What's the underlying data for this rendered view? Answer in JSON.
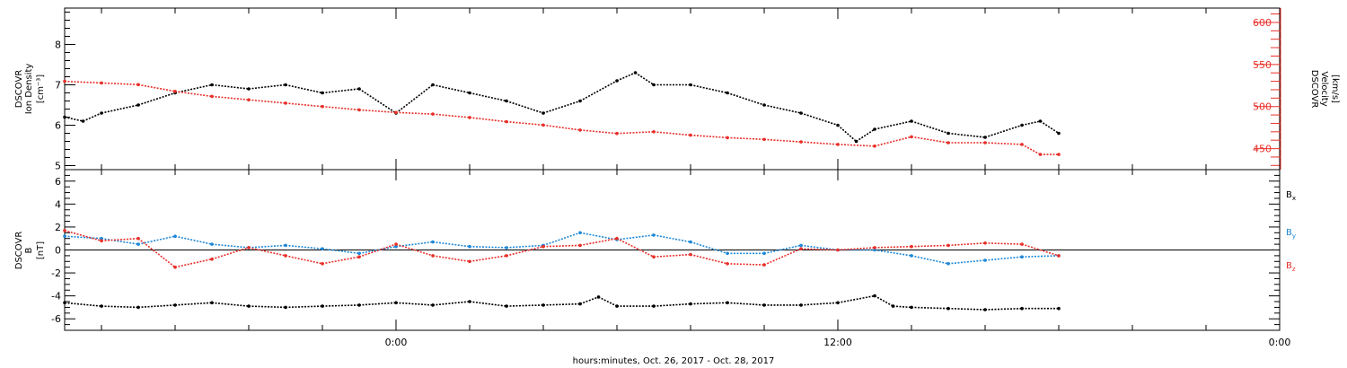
{
  "chart_data": [
    {
      "type": "scatter",
      "title": "",
      "y_label_lines": [
        "DSCOVR",
        "Ion Density"
      ],
      "y_unit": "[cm⁻³]",
      "y2_label_lines": [
        "DSCOVR",
        "Velocity"
      ],
      "y2_unit": "[km/s]",
      "y_ticks": [
        "5",
        "6",
        "7",
        "8"
      ],
      "y_tick_values": [
        5,
        6,
        7,
        8
      ],
      "y_lim": [
        4.9,
        8.9
      ],
      "y2_ticks": [
        "450",
        "500",
        "550",
        "600"
      ],
      "y2_tick_values": [
        450,
        500,
        550,
        600
      ],
      "y2_lim": [
        425,
        617
      ],
      "grid": false,
      "series": [
        {
          "axis": "left",
          "color": "#000000",
          "x_hours": [
            -9.0,
            -8.5,
            -8.0,
            -7.0,
            -6.0,
            -5.0,
            -4.0,
            -3.0,
            -2.0,
            -1.0,
            0.0,
            1.0,
            2.0,
            3.0,
            4.0,
            5.0,
            6.0,
            6.5,
            7.0,
            8.0,
            9.0,
            10.0,
            11.0,
            12.0,
            12.5,
            13.0,
            14.0,
            15.0,
            16.0,
            17.0,
            17.5,
            18.0
          ],
          "y": [
            6.2,
            6.1,
            6.3,
            6.5,
            6.8,
            7.0,
            6.9,
            7.0,
            6.8,
            6.9,
            6.3,
            7.0,
            6.8,
            6.6,
            6.3,
            6.6,
            7.1,
            7.3,
            7.0,
            7.0,
            6.8,
            6.5,
            6.3,
            6.0,
            5.6,
            5.9,
            6.1,
            5.8,
            5.7,
            6.0,
            6.1,
            5.8
          ]
        },
        {
          "axis": "right",
          "color": "#e8302a",
          "x_hours": [
            -9.0,
            -8.0,
            -7.0,
            -6.0,
            -5.0,
            -4.0,
            -3.0,
            -2.0,
            -1.0,
            0.0,
            1.0,
            2.0,
            3.0,
            4.0,
            5.0,
            6.0,
            7.0,
            8.0,
            9.0,
            10.0,
            11.0,
            12.0,
            13.0,
            14.0,
            15.0,
            16.0,
            17.0,
            17.5,
            18.0
          ],
          "y": [
            530,
            528,
            526,
            518,
            512,
            508,
            504,
            500,
            496,
            493,
            491,
            487,
            482,
            478,
            472,
            468,
            470,
            466,
            463,
            461,
            458,
            455,
            453,
            464,
            457,
            457,
            455,
            443,
            443
          ]
        }
      ]
    },
    {
      "type": "scatter",
      "title": "",
      "y_label_lines": [
        "DSCOVR",
        "B"
      ],
      "y_unit": "[nT]",
      "y_ticks": [
        "-6",
        "-4",
        "-2",
        "0",
        "2",
        "4",
        "6"
      ],
      "y_tick_values": [
        -6,
        -4,
        -2,
        0,
        2,
        4,
        6
      ],
      "y_lim": [
        -7,
        7
      ],
      "zero_line": true,
      "legend_position": "right",
      "grid": false,
      "series": [
        {
          "name": "Bx",
          "label_main": "B",
          "label_sub": "x",
          "color": "#000000",
          "x_hours": [
            -9.0,
            -8.0,
            -7.0,
            -6.0,
            -5.0,
            -4.0,
            -3.0,
            -2.0,
            -1.0,
            0.0,
            1.0,
            2.0,
            3.0,
            4.0,
            5.0,
            5.5,
            6.0,
            7.0,
            8.0,
            9.0,
            10.0,
            11.0,
            12.0,
            13.0,
            13.5,
            14.0,
            15.0,
            16.0,
            17.0,
            18.0
          ],
          "y": [
            -4.6,
            -4.9,
            -5.0,
            -4.8,
            -4.6,
            -4.9,
            -5.0,
            -4.9,
            -4.8,
            -4.6,
            -4.8,
            -4.5,
            -4.9,
            -4.8,
            -4.7,
            -4.1,
            -4.9,
            -4.9,
            -4.7,
            -4.6,
            -4.8,
            -4.8,
            -4.6,
            -4.0,
            -4.9,
            -5.0,
            -5.1,
            -5.2,
            -5.1,
            -5.1
          ]
        },
        {
          "name": "By",
          "label_main": "B",
          "label_sub": "y",
          "color": "#1e88d8",
          "x_hours": [
            -9.0,
            -8.0,
            -7.0,
            -6.0,
            -5.0,
            -4.0,
            -3.0,
            -2.0,
            -1.0,
            0.0,
            1.0,
            2.0,
            3.0,
            4.0,
            5.0,
            6.0,
            7.0,
            8.0,
            9.0,
            10.0,
            11.0,
            12.0,
            13.0,
            14.0,
            15.0,
            16.0,
            17.0,
            18.0
          ],
          "y": [
            1.2,
            1.0,
            0.5,
            1.2,
            0.5,
            0.2,
            0.4,
            0.1,
            -0.3,
            0.3,
            0.7,
            0.3,
            0.2,
            0.4,
            1.5,
            0.9,
            1.3,
            0.7,
            -0.3,
            -0.3,
            0.4,
            0.0,
            0.0,
            -0.5,
            -1.2,
            -0.9,
            -0.6,
            -0.5
          ]
        },
        {
          "name": "Bz",
          "label_main": "B",
          "label_sub": "z",
          "color": "#e8302a",
          "x_hours": [
            -9.0,
            -8.0,
            -7.0,
            -6.0,
            -5.0,
            -4.0,
            -3.0,
            -2.0,
            -1.0,
            0.0,
            1.0,
            2.0,
            3.0,
            4.0,
            5.0,
            6.0,
            7.0,
            8.0,
            9.0,
            10.0,
            11.0,
            12.0,
            13.0,
            14.0,
            15.0,
            16.0,
            17.0,
            18.0
          ],
          "y": [
            1.7,
            0.8,
            1.0,
            -1.5,
            -0.8,
            0.2,
            -0.5,
            -1.2,
            -0.6,
            0.5,
            -0.5,
            -1.0,
            -0.5,
            0.3,
            0.4,
            1.0,
            -0.6,
            -0.4,
            -1.2,
            -1.3,
            0.1,
            0.0,
            0.2,
            0.3,
            0.4,
            0.6,
            0.5,
            -0.5
          ]
        }
      ]
    }
  ],
  "x_axis": {
    "tick_labels": [
      "0:00",
      "12:00",
      "0:00"
    ],
    "tick_hours": [
      0,
      12,
      24
    ],
    "range_hours": [
      -9,
      24
    ],
    "title": "hours:minutes, Oct. 26, 2017 - Oct. 28, 2017"
  }
}
